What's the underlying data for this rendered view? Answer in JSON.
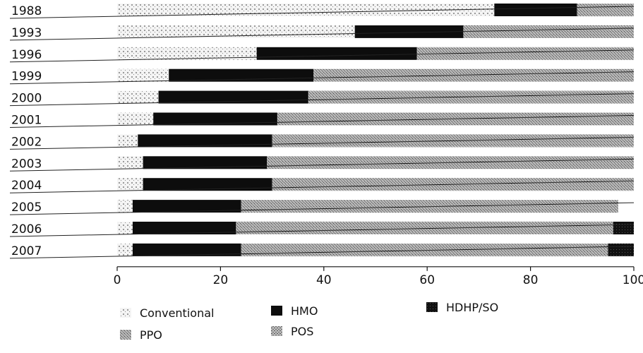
{
  "chart_data": {
    "type": "bar",
    "orientation": "horizontal",
    "stacked": true,
    "percent_scale": true,
    "title": "",
    "xlabel": "",
    "ylabel": "",
    "xlim": [
      0,
      100
    ],
    "xticks": [
      "0",
      "20",
      "40",
      "60",
      "80",
      "100"
    ],
    "categories": [
      "1988",
      "1993",
      "1996",
      "1999",
      "2000",
      "2001",
      "2002",
      "2003",
      "2004",
      "2005",
      "2006",
      "2007"
    ],
    "series": [
      {
        "name": "Conventional",
        "key": "conventional",
        "color": "#f2f2f2",
        "values": [
          73,
          46,
          27,
          10,
          8,
          7,
          4,
          5,
          5,
          3,
          3,
          3
        ]
      },
      {
        "name": "HMO",
        "key": "hmo",
        "color": "#111111",
        "values": [
          16,
          21,
          31,
          28,
          29,
          24,
          26,
          24,
          25,
          21,
          20,
          21
        ]
      },
      {
        "name": "PPO",
        "key": "ppo",
        "color": "#9a9a9a",
        "values": [
          11,
          33,
          42,
          62,
          63,
          69,
          70,
          71,
          70,
          73,
          73,
          71
        ]
      },
      {
        "name": "POS",
        "key": "pos",
        "color": "#cccccc",
        "values": [
          0,
          0,
          0,
          0,
          0,
          0,
          0,
          0,
          0,
          0,
          0,
          0
        ]
      },
      {
        "name": "HDHP/SO",
        "key": "hdhp",
        "color": "#222222",
        "values": [
          0,
          0,
          0,
          0,
          0,
          0,
          0,
          0,
          0,
          0,
          4,
          5
        ]
      }
    ],
    "legend_position": "bottom",
    "legend": [
      {
        "label": "Conventional",
        "key": "conventional"
      },
      {
        "label": "HMO",
        "key": "hmo"
      },
      {
        "label": "HDHP/SO",
        "key": "hdhp"
      },
      {
        "label": "PPO",
        "key": "ppo"
      },
      {
        "label": "POS",
        "key": "pos"
      }
    ]
  }
}
